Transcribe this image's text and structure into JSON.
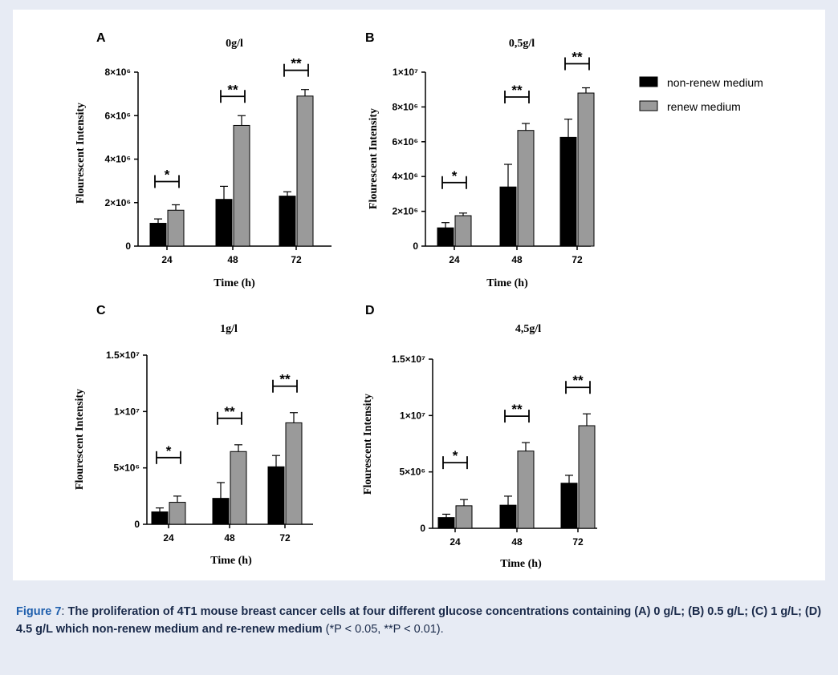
{
  "caption": {
    "label": "Figure 7",
    "separator": ": ",
    "bold_text": "The proliferation of 4T1 mouse breast cancer cells at four different glucose concentrations containing (A) 0 g/L; (B) 0.5 g/L; (C) 1 g/L; (D) 4.5 g/L which non-renew medium and re-renew medium",
    "tail_text": " (*P < 0.05, **P < 0.01)."
  },
  "legend": {
    "items": [
      {
        "label": "non-renew medium",
        "color": "#000000"
      },
      {
        "label": "renew medium",
        "color": "#9a9a9a"
      }
    ]
  },
  "colors": {
    "non_renew": "#000000",
    "renew": "#9a9a9a"
  },
  "chart_data": [
    {
      "panel": "A",
      "type": "bar",
      "title": "0g/l",
      "xlabel": "Time (h)",
      "ylabel": "Flourescent Intensity",
      "categories": [
        "24",
        "48",
        "72"
      ],
      "ylim": [
        0,
        8000000
      ],
      "yticks": [
        0,
        2000000,
        4000000,
        6000000,
        8000000
      ],
      "ytick_labels": [
        "0",
        "2×10⁶",
        "4×10⁶",
        "6×10⁶",
        "8×10⁶"
      ],
      "series": [
        {
          "name": "non-renew medium",
          "values": [
            1050000,
            2150000,
            2300000
          ],
          "errors": [
            200000,
            600000,
            200000
          ]
        },
        {
          "name": "renew medium",
          "values": [
            1650000,
            5550000,
            6900000
          ],
          "errors": [
            250000,
            450000,
            300000
          ]
        }
      ],
      "significance": [
        "*",
        "**",
        "**"
      ]
    },
    {
      "panel": "B",
      "type": "bar",
      "title": "0,5g/l",
      "xlabel": "Time (h)",
      "ylabel": "Flourescent Intensity",
      "categories": [
        "24",
        "48",
        "72"
      ],
      "ylim": [
        0,
        10000000
      ],
      "yticks": [
        0,
        2000000,
        4000000,
        6000000,
        8000000,
        10000000
      ],
      "ytick_labels": [
        "0",
        "2×10⁶",
        "4×10⁶",
        "6×10⁶",
        "8×10⁶",
        "1×10⁷"
      ],
      "series": [
        {
          "name": "non-renew medium",
          "values": [
            1050000,
            3400000,
            6250000
          ],
          "errors": [
            300000,
            1300000,
            1050000
          ]
        },
        {
          "name": "renew medium",
          "values": [
            1750000,
            6650000,
            8800000
          ],
          "errors": [
            150000,
            400000,
            300000
          ]
        }
      ],
      "significance": [
        "*",
        "**",
        "**"
      ]
    },
    {
      "panel": "C",
      "type": "bar",
      "title": "1g/l",
      "xlabel": "Time (h)",
      "ylabel": "Flourescent Intensity",
      "categories": [
        "24",
        "48",
        "72"
      ],
      "ylim": [
        0,
        15000000
      ],
      "yticks": [
        0,
        5000000,
        10000000,
        15000000
      ],
      "ytick_labels": [
        "0",
        "5×10⁶",
        "1×10⁷",
        "1.5×10⁷"
      ],
      "series": [
        {
          "name": "non-renew medium",
          "values": [
            1100000,
            2300000,
            5100000
          ],
          "errors": [
            350000,
            1400000,
            1000000
          ]
        },
        {
          "name": "renew medium",
          "values": [
            1950000,
            6450000,
            9000000
          ],
          "errors": [
            550000,
            600000,
            900000
          ]
        }
      ],
      "significance": [
        "*",
        "**",
        "**"
      ]
    },
    {
      "panel": "D",
      "type": "bar",
      "title": "4,5g/l",
      "xlabel": "Time (h)",
      "ylabel": "Flourescent Intensity",
      "categories": [
        "24",
        "48",
        "72"
      ],
      "ylim": [
        0,
        15000000
      ],
      "yticks": [
        0,
        5000000,
        10000000,
        15000000
      ],
      "ytick_labels": [
        "0",
        "5×10⁶",
        "1×10⁷",
        "1.5×10⁷"
      ],
      "series": [
        {
          "name": "non-renew medium",
          "values": [
            950000,
            2050000,
            4000000
          ],
          "errors": [
            300000,
            800000,
            700000
          ]
        },
        {
          "name": "renew medium",
          "values": [
            2000000,
            6850000,
            9100000
          ],
          "errors": [
            550000,
            750000,
            1050000
          ]
        }
      ],
      "significance": [
        "*",
        "**",
        "**"
      ]
    }
  ]
}
